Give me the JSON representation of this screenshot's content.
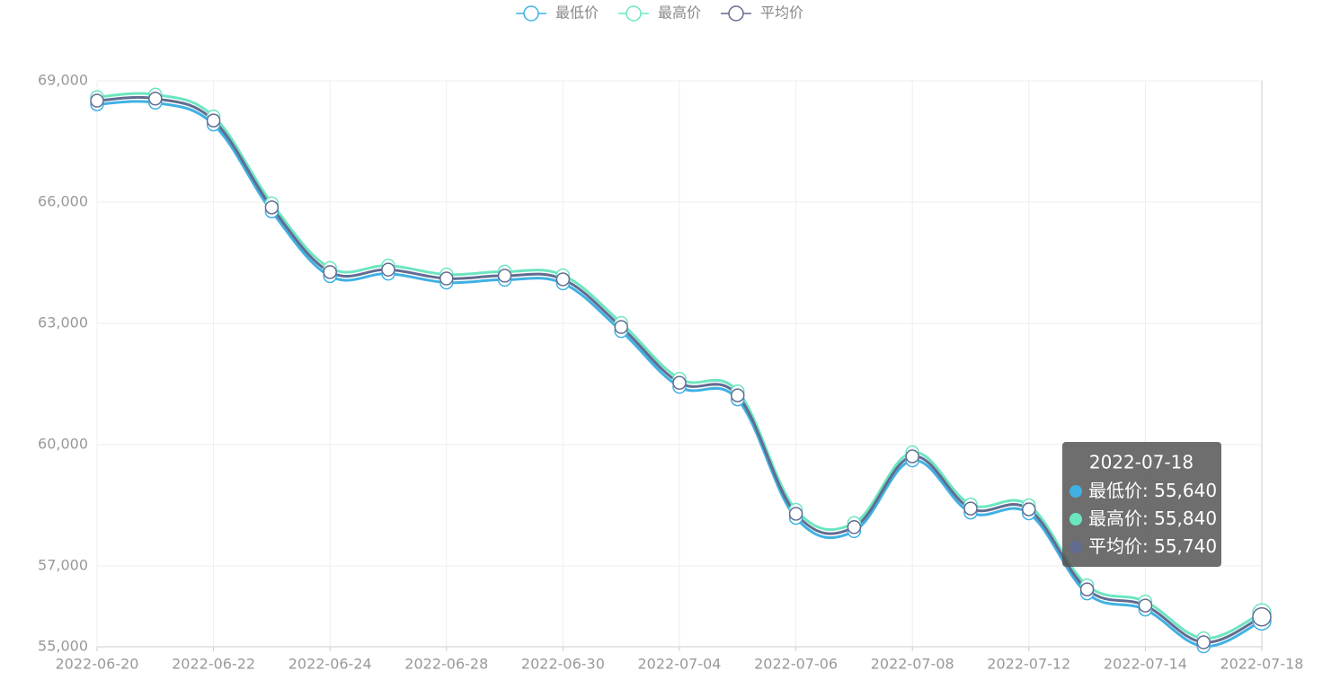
{
  "chart_data": {
    "type": "line",
    "categories": [
      "2022-06-20",
      null,
      "2022-06-22",
      null,
      "2022-06-24",
      null,
      "2022-06-28",
      null,
      "2022-06-30",
      null,
      "2022-07-04",
      null,
      "2022-07-06",
      null,
      "2022-07-08",
      null,
      "2022-07-12",
      null,
      "2022-07-14",
      null,
      "2022-07-18"
    ],
    "series": [
      {
        "name": "最低价",
        "color": "#3fb1e3",
        "values": [
          68420,
          68460,
          67920,
          65770,
          64170,
          64230,
          64010,
          64080,
          63990,
          62810,
          61430,
          61120,
          58190,
          57860,
          59610,
          58320,
          58300,
          56320,
          55920,
          55010,
          55640
        ]
      },
      {
        "name": "最高价",
        "color": "#6be6c1",
        "values": [
          68600,
          68660,
          68120,
          65970,
          64370,
          64430,
          64210,
          64280,
          64190,
          63010,
          61630,
          61320,
          58390,
          58060,
          59810,
          58520,
          58500,
          56520,
          56120,
          55210,
          55840
        ]
      },
      {
        "name": "平均价",
        "color": "#626c91",
        "values": [
          68510,
          68560,
          68020,
          65870,
          64270,
          64330,
          64110,
          64180,
          64090,
          62910,
          61530,
          61220,
          58290,
          57960,
          59710,
          58420,
          58400,
          56420,
          56020,
          55110,
          55740
        ]
      }
    ],
    "ylim": [
      55000,
      69000
    ],
    "yticks": [
      {
        "value": 55000,
        "label": "55,000"
      },
      {
        "value": 57000,
        "label": "57,000"
      },
      {
        "value": 60000,
        "label": "60,000"
      },
      {
        "value": 63000,
        "label": "63,000"
      },
      {
        "value": 66000,
        "label": "66,000"
      },
      {
        "value": 69000,
        "label": "69,000"
      }
    ],
    "grid": true,
    "smooth": true,
    "legend": "top",
    "tooltip": {
      "index": 20,
      "value_labels": [
        "55,640",
        "55,840",
        "55,740"
      ]
    }
  }
}
